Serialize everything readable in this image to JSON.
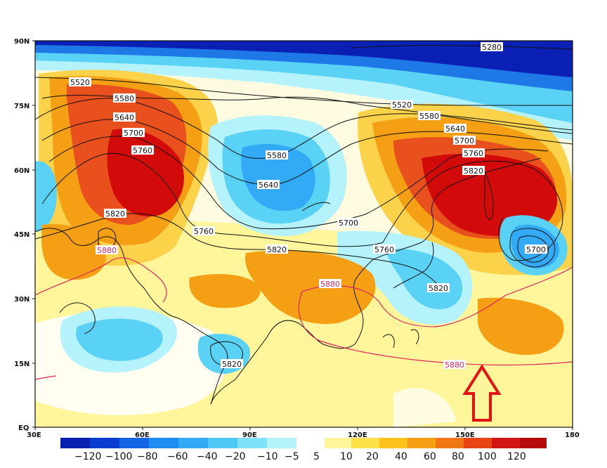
{
  "map": {
    "lat_ticks": [
      "90N",
      "75N",
      "60N",
      "45N",
      "30N",
      "15N",
      "EQ"
    ],
    "lon_ticks": [
      "30E",
      "60E",
      "90E",
      "120E",
      "150E",
      "180"
    ],
    "contours_black": [
      "5280",
      "5520",
      "5580",
      "5640",
      "5700",
      "5760",
      "5820",
      "5520",
      "5580",
      "5640",
      "5700",
      "5760",
      "5820",
      "5580",
      "5640",
      "5700",
      "5760",
      "5820",
      "5760",
      "5700",
      "5820",
      "5820"
    ],
    "contours_red": [
      "5880",
      "5880",
      "5880"
    ],
    "colors": {
      "neg_deep": "#0a1fb4",
      "neg_mid": "#1e78e6",
      "neg_light": "#5ad2f5",
      "pos_light": "#fff06e",
      "pos_mid": "#f5a014",
      "pos_strong": "#e8501e",
      "pos_max": "#d20a0a"
    },
    "arrow": "up-arrow"
  },
  "colorbar": {
    "labels": [
      "−120",
      "−100",
      "−80",
      "−60",
      "−40",
      "−20",
      "−10",
      "−5",
      "5",
      "10",
      "20",
      "40",
      "60",
      "80",
      "100",
      "120"
    ],
    "colors": [
      "#0820b0",
      "#0a3cd2",
      "#1464e6",
      "#1e8cf0",
      "#32aaf5",
      "#50c8f5",
      "#7ee2f8",
      "#b4f2fc",
      "#ffffff",
      "#fff59a",
      "#ffe14a",
      "#ffc31e",
      "#f5a014",
      "#f07814",
      "#e64614",
      "#d21414",
      "#b40a0a"
    ]
  }
}
